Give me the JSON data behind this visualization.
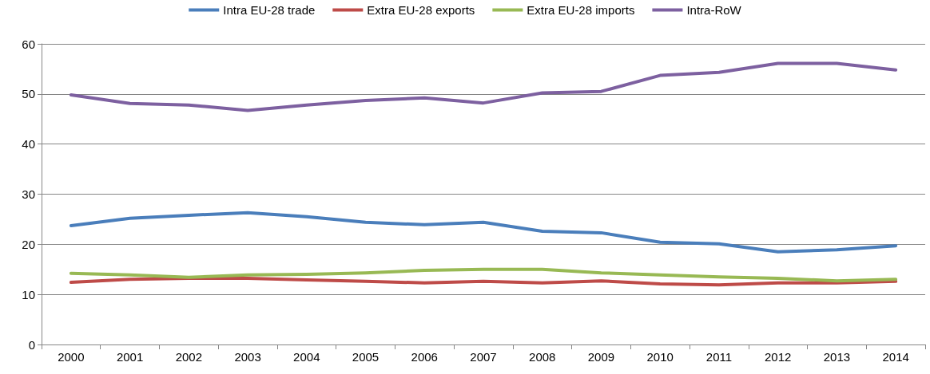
{
  "chart_data": {
    "type": "line",
    "categories": [
      "2000",
      "2001",
      "2002",
      "2003",
      "2004",
      "2005",
      "2006",
      "2007",
      "2008",
      "2009",
      "2010",
      "2011",
      "2012",
      "2013",
      "2014"
    ],
    "series": [
      {
        "name": "Intra EU-28 trade",
        "color": "#4a7ebb",
        "values": [
          23.7,
          25.2,
          25.8,
          26.3,
          25.5,
          24.4,
          23.9,
          24.4,
          22.6,
          22.3,
          20.4,
          20.1,
          18.5,
          18.9,
          19.7
        ]
      },
      {
        "name": "Extra EU-28 exports",
        "color": "#be4b48",
        "values": [
          12.4,
          13.0,
          13.2,
          13.2,
          12.9,
          12.6,
          12.3,
          12.6,
          12.3,
          12.7,
          12.1,
          11.9,
          12.3,
          12.3,
          12.6
        ]
      },
      {
        "name": "Extra EU-28 imports",
        "color": "#98b954",
        "values": [
          14.2,
          13.9,
          13.4,
          13.9,
          14.0,
          14.3,
          14.8,
          15.0,
          15.0,
          14.3,
          13.9,
          13.5,
          13.2,
          12.7,
          13.0
        ]
      },
      {
        "name": "Intra-RoW",
        "color": "#7d60a0",
        "values": [
          49.8,
          48.1,
          47.8,
          46.7,
          47.8,
          48.7,
          49.2,
          48.2,
          50.2,
          50.5,
          53.7,
          54.3,
          56.1,
          56.1,
          54.8
        ]
      }
    ],
    "ylim": [
      0,
      60
    ],
    "yticks": [
      0,
      10,
      20,
      30,
      40,
      50,
      60
    ],
    "grid": "y",
    "legend": "top",
    "marker": "none",
    "line_style": "solid"
  }
}
